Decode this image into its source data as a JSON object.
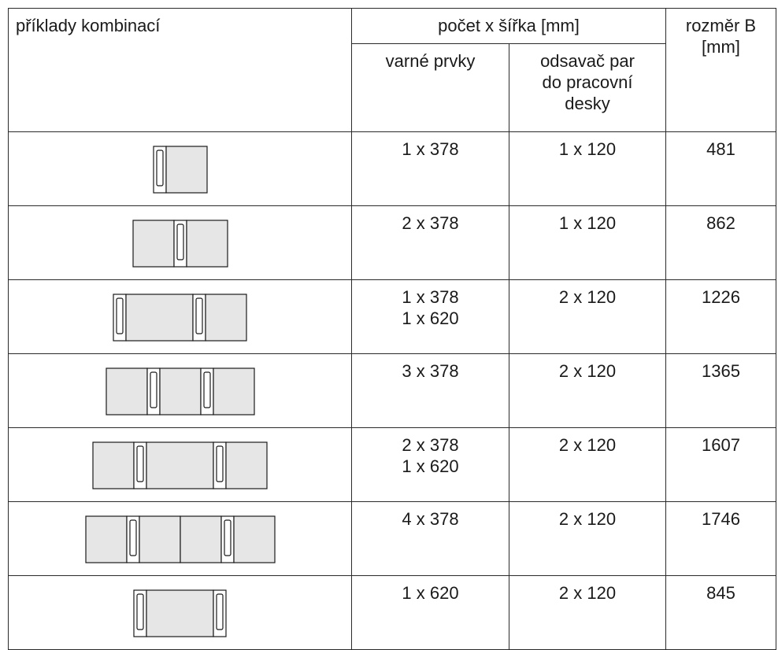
{
  "header": {
    "combo_label": "příklady kombinací",
    "count_width_label": "počet x šířka [mm]",
    "hobs_label": "varné prvky",
    "extractor_line1": "odsavač par",
    "extractor_line2": "do pracovní",
    "extractor_line3": "desky",
    "dim_line1": "rozměr B",
    "dim_line2": "[mm]"
  },
  "rows": [
    {
      "hobs": [
        "1 x 378"
      ],
      "extractor": "1 x 120",
      "dim": "481",
      "diagram": [
        "V",
        "H378"
      ]
    },
    {
      "hobs": [
        "2 x 378"
      ],
      "extractor": "1 x 120",
      "dim": "862",
      "diagram": [
        "H378",
        "V",
        "H378"
      ]
    },
    {
      "hobs": [
        "1 x 378",
        "1 x 620"
      ],
      "extractor": "2 x 120",
      "dim": "1226",
      "diagram": [
        "V",
        "H620",
        "V",
        "H378"
      ]
    },
    {
      "hobs": [
        "3 x 378"
      ],
      "extractor": "2 x 120",
      "dim": "1365",
      "diagram": [
        "H378",
        "V",
        "H378",
        "V",
        "H378"
      ]
    },
    {
      "hobs": [
        "2 x 378",
        "1 x 620"
      ],
      "extractor": "2 x 120",
      "dim": "1607",
      "diagram": [
        "H378",
        "V",
        "H620",
        "V",
        "H378"
      ]
    },
    {
      "hobs": [
        "4 x 378"
      ],
      "extractor": "2 x 120",
      "dim": "1746",
      "diagram": [
        "H378",
        "V",
        "H378",
        "H378",
        "V",
        "H378"
      ]
    },
    {
      "hobs": [
        "1 x 620"
      ],
      "extractor": "2 x 120",
      "dim": "845",
      "diagram": [
        "V",
        "H620",
        "V"
      ]
    }
  ]
}
